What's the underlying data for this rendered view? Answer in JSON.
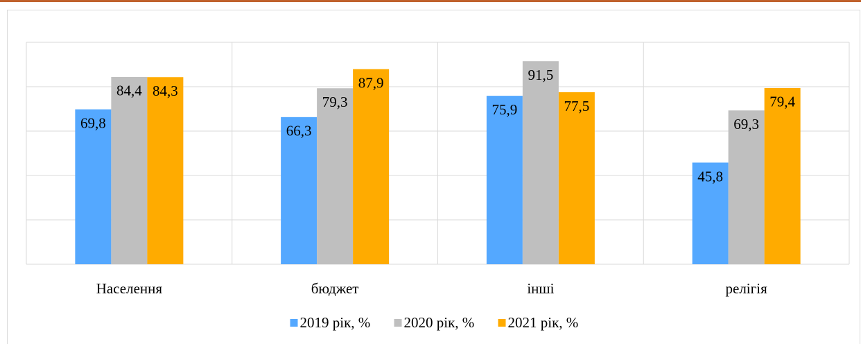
{
  "chart_data": {
    "type": "bar",
    "categories": [
      "Населення",
      "бюджет",
      "інші",
      "релігія"
    ],
    "series": [
      {
        "name": "2019 рік, %",
        "color": "#54a8ff",
        "values": [
          69.8,
          66.3,
          75.9,
          45.8
        ],
        "value_labels": [
          "69,8",
          "66,3",
          "75,9",
          "45,8"
        ]
      },
      {
        "name": "2020 рік, %",
        "color": "#bfbfbf",
        "values": [
          84.4,
          79.3,
          91.5,
          69.3
        ],
        "value_labels": [
          "84,4",
          "79,3",
          "91,5",
          "69,3"
        ]
      },
      {
        "name": "2021 рік, %",
        "color": "#ffab00",
        "values": [
          84.3,
          87.9,
          77.5,
          79.4
        ],
        "value_labels": [
          "84,3",
          "87,9",
          "77,5",
          "79,4"
        ]
      }
    ],
    "ylim": [
      0,
      100
    ],
    "yticks": [
      0,
      20,
      40,
      60,
      80,
      100
    ],
    "grid": true,
    "legend": "bottom"
  }
}
